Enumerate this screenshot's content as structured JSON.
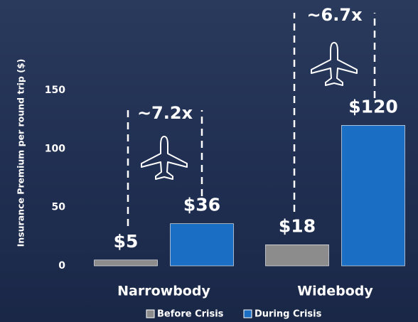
{
  "chart_data": {
    "type": "bar",
    "y_label": "Insurance Premium per round trip ($)",
    "categories": [
      "Narrowbody",
      "Widebody"
    ],
    "series": [
      {
        "name": "Before Crisis",
        "color": "#8c8c8c",
        "values": [
          5,
          18
        ],
        "value_labels": [
          "$5",
          "$18"
        ]
      },
      {
        "name": "During Crisis",
        "color": "#1a6fc4",
        "values": [
          36,
          120
        ],
        "value_labels": [
          "$36",
          "$120"
        ]
      }
    ],
    "annotations": [
      "~7.2x",
      "~6.7x"
    ],
    "ylim": [
      0,
      225
    ],
    "yticks": [
      0,
      50,
      100,
      150
    ]
  }
}
